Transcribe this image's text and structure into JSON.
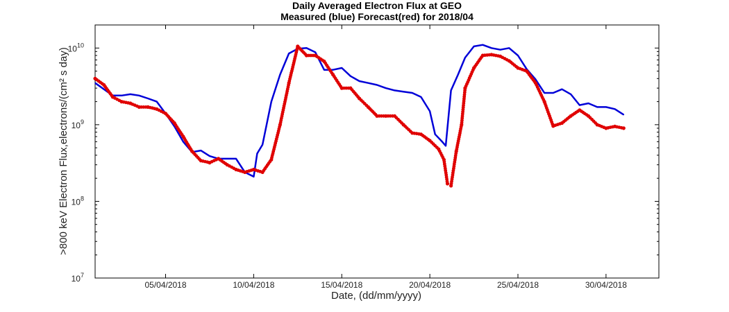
{
  "chart_data": {
    "type": "line",
    "title": "Daily Averaged Electron Flux at GEO",
    "subtitle": "Measured (blue) Forecast(red) for 2018/04",
    "xlabel": "Date, (dd/mm/yyyy)",
    "ylabel": ">800 keV Electron Flux,electrons/(cm² s day)",
    "x_ticks": [
      {
        "day": 5,
        "label": "05/04/2018"
      },
      {
        "day": 10,
        "label": "10/04/2018"
      },
      {
        "day": 15,
        "label": "15/04/2018"
      },
      {
        "day": 20,
        "label": "20/04/2018"
      },
      {
        "day": 25,
        "label": "25/04/2018"
      },
      {
        "day": 30,
        "label": "30/04/2018"
      }
    ],
    "x_range": [
      1.0,
      33.0
    ],
    "y_scale": "log",
    "y_range": [
      10000000,
      20000000000
    ],
    "y_ticks": [
      {
        "value": 10000000,
        "base": "10",
        "exp": "7"
      },
      {
        "value": 100000000,
        "base": "10",
        "exp": "8"
      },
      {
        "value": 1000000000,
        "base": "10",
        "exp": "9"
      },
      {
        "value": 10000000000,
        "base": "10",
        "exp": "10"
      }
    ],
    "grid": false,
    "series": [
      {
        "name": "Measured",
        "color": "#0000d8",
        "style": "line",
        "points": [
          [
            1.0,
            3500000000.0
          ],
          [
            1.5,
            2900000000.0
          ],
          [
            2.0,
            2400000000.0
          ],
          [
            2.5,
            2400000000.0
          ],
          [
            3.0,
            2500000000.0
          ],
          [
            3.5,
            2400000000.0
          ],
          [
            4.0,
            2200000000.0
          ],
          [
            4.5,
            2000000000.0
          ],
          [
            5.0,
            1400000000.0
          ],
          [
            5.5,
            950000000.0
          ],
          [
            6.0,
            600000000.0
          ],
          [
            6.5,
            440000000.0
          ],
          [
            7.0,
            460000000.0
          ],
          [
            7.5,
            390000000.0
          ],
          [
            8.0,
            360000000.0
          ],
          [
            8.5,
            360000000.0
          ],
          [
            9.0,
            360000000.0
          ],
          [
            9.5,
            240000000.0
          ],
          [
            10.0,
            210000000.0
          ],
          [
            10.2,
            420000000.0
          ],
          [
            10.5,
            550000000.0
          ],
          [
            11.0,
            2000000000.0
          ],
          [
            11.5,
            4500000000.0
          ],
          [
            12.0,
            8500000000.0
          ],
          [
            12.5,
            9800000000.0
          ],
          [
            13.0,
            10000000000.0
          ],
          [
            13.5,
            8800000000.0
          ],
          [
            14.0,
            5200000000.0
          ],
          [
            14.5,
            5200000000.0
          ],
          [
            15.0,
            5500000000.0
          ],
          [
            15.5,
            4300000000.0
          ],
          [
            16.0,
            3700000000.0
          ],
          [
            16.5,
            3500000000.0
          ],
          [
            17.0,
            3300000000.0
          ],
          [
            17.5,
            3000000000.0
          ],
          [
            18.0,
            2800000000.0
          ],
          [
            18.5,
            2700000000.0
          ],
          [
            19.0,
            2600000000.0
          ],
          [
            19.5,
            2300000000.0
          ],
          [
            20.0,
            1500000000.0
          ],
          [
            20.3,
            750000000.0
          ],
          [
            20.7,
            600000000.0
          ],
          [
            20.9,
            530000000.0
          ],
          [
            21.2,
            2800000000.0
          ],
          [
            21.6,
            4500000000.0
          ],
          [
            22.0,
            7500000000.0
          ],
          [
            22.5,
            10500000000.0
          ],
          [
            23.0,
            11000000000.0
          ],
          [
            23.5,
            10000000000.0
          ],
          [
            24.0,
            9500000000.0
          ],
          [
            24.5,
            10000000000.0
          ],
          [
            25.0,
            8000000000.0
          ],
          [
            25.5,
            5300000000.0
          ],
          [
            26.0,
            3900000000.0
          ],
          [
            26.5,
            2600000000.0
          ],
          [
            27.0,
            2600000000.0
          ],
          [
            27.5,
            2900000000.0
          ],
          [
            28.0,
            2500000000.0
          ],
          [
            28.5,
            1800000000.0
          ],
          [
            29.0,
            1900000000.0
          ],
          [
            29.5,
            1700000000.0
          ],
          [
            30.0,
            1700000000.0
          ],
          [
            30.5,
            1600000000.0
          ],
          [
            31.0,
            1350000000.0
          ]
        ]
      },
      {
        "name": "Forecast",
        "color": "#e00000",
        "style": "dots",
        "points": [
          [
            1.0,
            4000000000.0
          ],
          [
            1.5,
            3300000000.0
          ],
          [
            2.0,
            2300000000.0
          ],
          [
            2.5,
            2000000000.0
          ],
          [
            3.0,
            1900000000.0
          ],
          [
            3.5,
            1700000000.0
          ],
          [
            4.0,
            1700000000.0
          ],
          [
            4.5,
            1600000000.0
          ],
          [
            5.0,
            1400000000.0
          ],
          [
            5.5,
            1050000000.0
          ],
          [
            6.0,
            700000000.0
          ],
          [
            6.5,
            450000000.0
          ],
          [
            7.0,
            340000000.0
          ],
          [
            7.5,
            320000000.0
          ],
          [
            8.0,
            360000000.0
          ],
          [
            8.5,
            300000000.0
          ],
          [
            9.0,
            260000000.0
          ],
          [
            9.5,
            240000000.0
          ],
          [
            10.0,
            260000000.0
          ],
          [
            10.5,
            240000000.0
          ],
          [
            11.0,
            350000000.0
          ],
          [
            11.5,
            1000000000.0
          ],
          [
            12.0,
            3500000000.0
          ],
          [
            12.5,
            10500000000.0
          ],
          [
            13.0,
            8000000000.0
          ],
          [
            13.5,
            8000000000.0
          ],
          [
            14.0,
            6700000000.0
          ],
          [
            14.5,
            4500000000.0
          ],
          [
            15.0,
            3000000000.0
          ],
          [
            15.5,
            3000000000.0
          ],
          [
            16.0,
            2200000000.0
          ],
          [
            16.5,
            1700000000.0
          ],
          [
            17.0,
            1300000000.0
          ],
          [
            17.5,
            1300000000.0
          ],
          [
            18.0,
            1300000000.0
          ],
          [
            18.5,
            1000000000.0
          ],
          [
            19.0,
            780000000.0
          ],
          [
            19.5,
            750000000.0
          ],
          [
            20.0,
            620000000.0
          ],
          [
            20.5,
            480000000.0
          ],
          [
            20.8,
            350000000.0
          ],
          [
            21.0,
            170000000.0
          ],
          [
            21.2,
            160000000.0
          ],
          [
            21.5,
            450000000.0
          ],
          [
            21.8,
            1000000000.0
          ],
          [
            22.0,
            3000000000.0
          ],
          [
            22.5,
            5500000000.0
          ],
          [
            23.0,
            8000000000.0
          ],
          [
            23.5,
            8200000000.0
          ],
          [
            24.0,
            7800000000.0
          ],
          [
            24.5,
            6800000000.0
          ],
          [
            25.0,
            5500000000.0
          ],
          [
            25.5,
            5000000000.0
          ],
          [
            26.0,
            3500000000.0
          ],
          [
            26.5,
            2000000000.0
          ],
          [
            27.0,
            960000000.0
          ],
          [
            27.5,
            1050000000.0
          ],
          [
            28.0,
            1300000000.0
          ],
          [
            28.5,
            1550000000.0
          ],
          [
            29.0,
            1300000000.0
          ],
          [
            29.5,
            1000000000.0
          ],
          [
            30.0,
            900000000.0
          ],
          [
            30.5,
            950000000.0
          ],
          [
            31.0,
            900000000.0
          ]
        ]
      }
    ]
  }
}
